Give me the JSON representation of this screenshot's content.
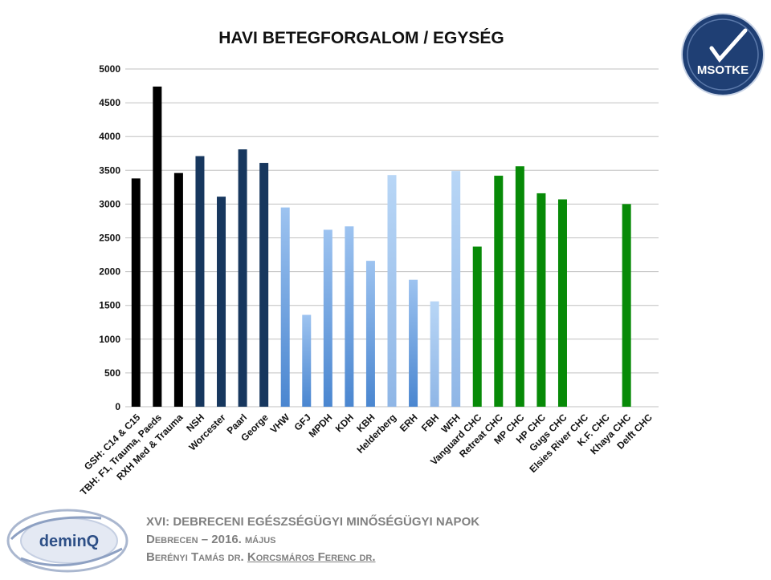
{
  "chart_data": {
    "type": "bar",
    "title": "HAVI BETEGFORGALOM / EGYSÉG",
    "ylim": [
      0,
      5000
    ],
    "yticks": [
      0,
      500,
      1000,
      1500,
      2000,
      2500,
      3000,
      3500,
      4000,
      4500,
      5000
    ],
    "grid": true,
    "categories": [
      "GSH: C14 & C15",
      "TBH: F1, Trauma, Paeds",
      "RXH Med & Trauma",
      "NSH",
      "Worcester",
      "Paarl",
      "George",
      "VHW",
      "GFJ",
      "MPDH",
      "KDH",
      "KBH",
      "Helderberg",
      "ERH",
      "FBH",
      "WFH",
      "Vanguard CHC",
      "Retreat CHC",
      "MP CHC",
      "HP CHC",
      "Gugs CHC",
      "Elsies River CHC",
      "K.F. CHC",
      "Khaya CHC",
      "Delft CHC"
    ],
    "values": [
      3380,
      4740,
      3460,
      3710,
      3110,
      3810,
      3610,
      2950,
      1360,
      2620,
      2670,
      2160,
      3430,
      1880,
      1560,
      3490,
      2370,
      3420,
      3560,
      3160,
      3070,
      0,
      0,
      3000,
      0
    ],
    "colors": {
      "black": "#000000",
      "navy": "#17375e",
      "gradient_top": "#9dc3f0",
      "gradient_bottom": "#4a86d0",
      "light_blue": "#a6c8ef",
      "green": "#078a07",
      "grid": "#c0c0c0"
    },
    "color_groups": [
      "black",
      "black",
      "black",
      "navy",
      "navy",
      "navy",
      "navy",
      "gradient",
      "gradient",
      "gradient",
      "gradient",
      "gradient",
      "light",
      "gradient",
      "light",
      "light",
      "green",
      "green",
      "green",
      "green",
      "green",
      "green",
      "green",
      "green",
      "green"
    ]
  },
  "logo_msotke": "MSOTKE",
  "logo_deminq": "deminQ",
  "footer": {
    "line1": "XVI:  DEBRECENI EGÉSZSÉGÜGYI MINŐSÉGÜGYI NAPOK",
    "line2": "Debrecen – 2016. május",
    "line3_a": "Berényi Tamás dr. ",
    "line3_b": "Korcsmáros Ferenc dr."
  }
}
